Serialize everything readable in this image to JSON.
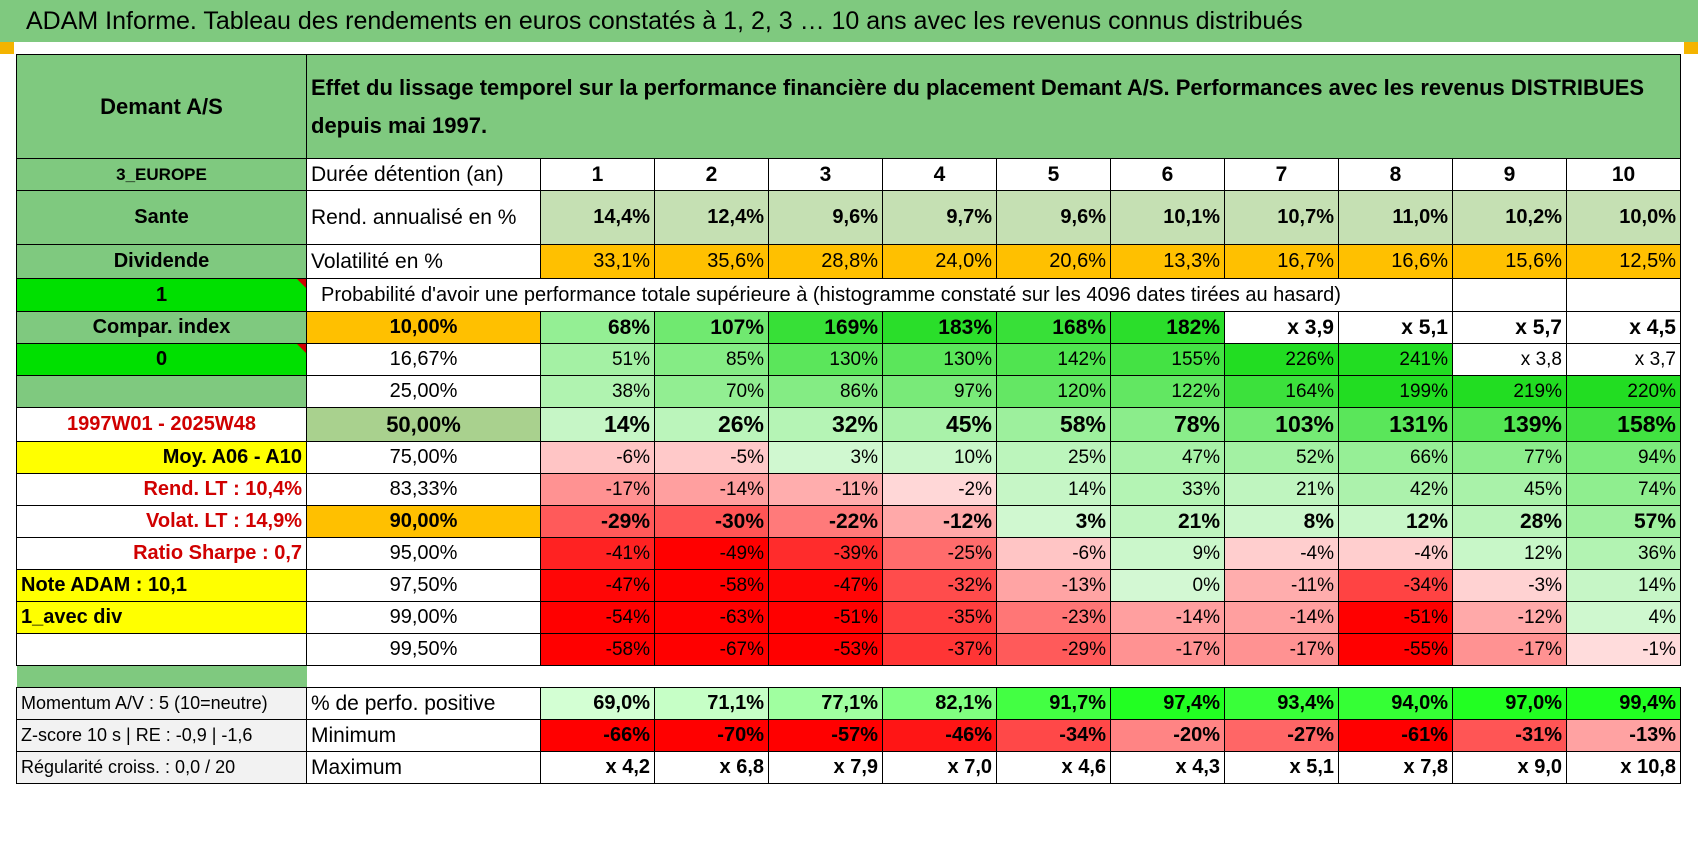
{
  "header": {
    "title": "ADAM Informe. Tableau des rendements en euros constatés à 1, 2, 3 … 10 ans avec les revenus connus distribués"
  },
  "colors": {
    "title_bg": "#7fc97f",
    "label_green": "#7fc97f",
    "bright_green": "#00e000",
    "yellow": "#ffff00",
    "orange": "#ffc000",
    "red_text": "#d00000",
    "light_grey": "#f2f2f2"
  },
  "table": {
    "fund_name": "Demant A/S",
    "description": "Effet du lissage temporel sur la performance financière du placement Demant A/S. Performances avec les revenus DISTRIBUES depuis mai 1997.",
    "side": {
      "region": "3_EUROPE",
      "sector": "Sante",
      "type": "Dividende",
      "flag1": "1",
      "compar_index": "Compar. index",
      "flag0": "0",
      "blank": "",
      "period": "1997W01 - 2025W48",
      "moy": "Moy. A06 - A10",
      "rend_lt": "Rend. LT :    10,4%",
      "volat_lt": "Volat. LT :    14,9%",
      "sharpe": "Ratio Sharpe :     0,7",
      "note": "Note ADAM : 10,1",
      "variant": "1_avec div"
    },
    "duration_label": "Durée détention (an)",
    "years": [
      "1",
      "2",
      "3",
      "4",
      "5",
      "6",
      "7",
      "8",
      "9",
      "10"
    ],
    "rend_label": "Rend. annualisé en %",
    "rend": [
      "14,4%",
      "12,4%",
      "9,6%",
      "9,7%",
      "9,6%",
      "10,1%",
      "10,7%",
      "11,0%",
      "10,2%",
      "10,0%"
    ],
    "vol_label": "Volatilité en %",
    "vol": [
      "33,1%",
      "35,6%",
      "28,8%",
      "24,0%",
      "20,6%",
      "13,3%",
      "16,7%",
      "16,6%",
      "15,6%",
      "12,5%"
    ],
    "prob_label": "Probabilité d'avoir une performance totale supérieure à (histogramme constaté sur les 4096 dates tirées au hasard)",
    "quantiles": [
      {
        "p": "10,00%",
        "v": [
          "68%",
          "107%",
          "169%",
          "183%",
          "168%",
          "182%",
          "x 3,9",
          "x 5,1",
          "x 5,7",
          "x 4,5"
        ]
      },
      {
        "p": "16,67%",
        "v": [
          "51%",
          "85%",
          "130%",
          "130%",
          "142%",
          "155%",
          "226%",
          "241%",
          "x 3,8",
          "x 3,7"
        ]
      },
      {
        "p": "25,00%",
        "v": [
          "38%",
          "70%",
          "86%",
          "97%",
          "120%",
          "122%",
          "164%",
          "199%",
          "219%",
          "220%"
        ]
      },
      {
        "p": "50,00%",
        "v": [
          "14%",
          "26%",
          "32%",
          "45%",
          "58%",
          "78%",
          "103%",
          "131%",
          "139%",
          "158%"
        ]
      },
      {
        "p": "75,00%",
        "v": [
          "-6%",
          "-5%",
          "3%",
          "10%",
          "25%",
          "47%",
          "52%",
          "66%",
          "77%",
          "94%"
        ]
      },
      {
        "p": "83,33%",
        "v": [
          "-17%",
          "-14%",
          "-11%",
          "-2%",
          "14%",
          "33%",
          "21%",
          "42%",
          "45%",
          "74%"
        ]
      },
      {
        "p": "90,00%",
        "v": [
          "-29%",
          "-30%",
          "-22%",
          "-12%",
          "3%",
          "21%",
          "8%",
          "12%",
          "28%",
          "57%"
        ]
      },
      {
        "p": "95,00%",
        "v": [
          "-41%",
          "-49%",
          "-39%",
          "-25%",
          "-6%",
          "9%",
          "-4%",
          "-4%",
          "12%",
          "36%"
        ]
      },
      {
        "p": "97,50%",
        "v": [
          "-47%",
          "-58%",
          "-47%",
          "-32%",
          "-13%",
          "0%",
          "-11%",
          "-34%",
          "-3%",
          "14%"
        ]
      },
      {
        "p": "99,00%",
        "v": [
          "-54%",
          "-63%",
          "-51%",
          "-35%",
          "-23%",
          "-14%",
          "-14%",
          "-51%",
          "-12%",
          "4%"
        ]
      },
      {
        "p": "99,50%",
        "v": [
          "-58%",
          "-67%",
          "-53%",
          "-37%",
          "-29%",
          "-17%",
          "-17%",
          "-55%",
          "-17%",
          "-1%"
        ]
      }
    ],
    "bottom": {
      "momentum": "Momentum A/V : 5 (10=neutre)",
      "zscore": "Z-score 10 s | RE : -0,9 | -1,6",
      "regularite": "Régularité croiss. : 0,0 / 20",
      "pos_label": "% de perfo. positive",
      "pos": [
        "69,0%",
        "71,1%",
        "77,1%",
        "82,1%",
        "91,7%",
        "97,4%",
        "93,4%",
        "94,0%",
        "97,0%",
        "99,4%"
      ],
      "min_label": "Minimum",
      "min": [
        "-66%",
        "-70%",
        "-57%",
        "-46%",
        "-34%",
        "-20%",
        "-27%",
        "-61%",
        "-31%",
        "-13%"
      ],
      "max_label": "Maximum",
      "max": [
        "x 4,2",
        "x 6,8",
        "x 7,9",
        "x 7,0",
        "x 4,6",
        "x 4,3",
        "x 5,1",
        "x 7,8",
        "x 9,0",
        "x 10,8"
      ]
    }
  }
}
